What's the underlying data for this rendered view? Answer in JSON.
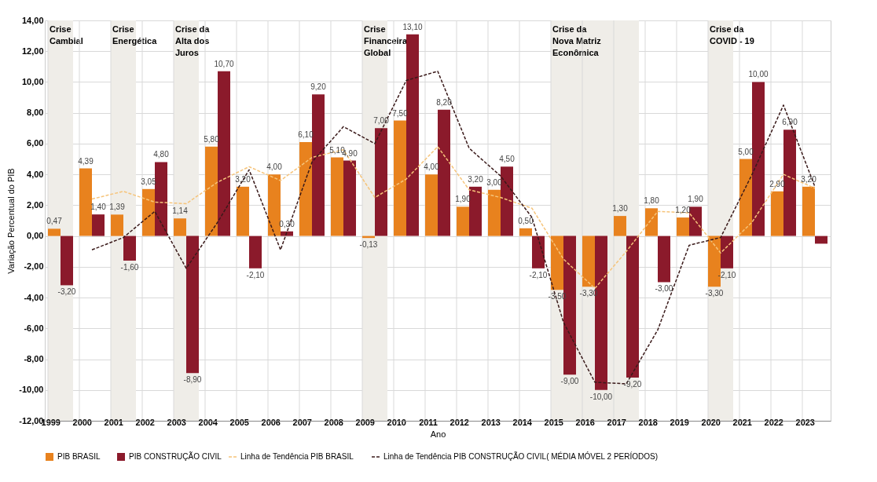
{
  "chart_data": {
    "type": "bar",
    "xlabel": "Ano",
    "ylabel": "Variação Percentual do PIB",
    "categories": [
      "1999",
      "2000",
      "2001",
      "2002",
      "2003",
      "2004",
      "2005",
      "2006",
      "2007",
      "2008",
      "2009",
      "2010",
      "2011",
      "2012",
      "2013",
      "2014",
      "2015",
      "2016",
      "2017",
      "2018",
      "2019",
      "2020",
      "2021",
      "2022",
      "2023"
    ],
    "series": [
      {
        "name": "PIB BRASIL",
        "color": "#e8821e",
        "values": [
          0.47,
          4.39,
          1.39,
          3.05,
          1.14,
          5.8,
          3.2,
          4.0,
          6.1,
          5.1,
          -0.13,
          7.5,
          4.0,
          1.9,
          3.0,
          0.5,
          -3.5,
          -3.3,
          1.3,
          1.8,
          1.2,
          -3.3,
          5.0,
          2.9,
          3.2
        ],
        "value_labels": [
          "0,47",
          "4,39",
          "1,39",
          "3,05",
          "1,14",
          "5,80",
          "3,20",
          "4,00",
          "6,10",
          "5,10",
          "-0,13",
          "7,50",
          "4,00",
          "1,90",
          "3,00",
          "0,50",
          "-3,50",
          "-3,30",
          "1,30",
          "1,80",
          "1,20",
          "-3,30",
          "5,00",
          "2,90",
          "3,20"
        ]
      },
      {
        "name": "PIB CONSTRUÇÃO CIVIL",
        "color": "#8b1a2b",
        "values": [
          -3.2,
          1.4,
          -1.6,
          4.8,
          -8.9,
          10.7,
          -2.1,
          0.3,
          9.2,
          4.9,
          7.0,
          13.1,
          8.2,
          3.2,
          4.5,
          -2.1,
          -9.0,
          -10.0,
          -9.2,
          -3.0,
          1.9,
          -2.1,
          10.0,
          6.9,
          -0.5
        ],
        "value_labels": [
          "-3,20",
          "1,40",
          "-1,60",
          "4,80",
          "-8,90",
          "10,70",
          "-2,10",
          "0,30",
          "9,20",
          "4,90",
          "7,00",
          "13,10",
          "8,20",
          "3,20",
          "4,50",
          "-2,10",
          "-9,00",
          "-10,00",
          "-9,20",
          "-3,00",
          "1,90",
          "-2,10",
          "10,00",
          "6,90",
          null
        ]
      },
      {
        "name": "Linha de Tendência PIB BRASIL",
        "type": "line",
        "line_style": "dashed",
        "color": "#f6c47a",
        "values": [
          null,
          2.4,
          2.9,
          2.2,
          2.1,
          3.5,
          4.5,
          3.6,
          5.1,
          5.6,
          2.5,
          3.7,
          5.8,
          3.0,
          2.5,
          1.8,
          -1.5,
          -3.4,
          -1.0,
          1.6,
          1.5,
          -1.1,
          0.9,
          4.0,
          3.1
        ]
      },
      {
        "name": "Linha de Tendência PIB CONSTRUÇÃO CIVIL( MÉDIA MÓVEL 2 PERÍODOS)",
        "type": "line",
        "line_style": "dashed",
        "color": "#3a1a1a",
        "values": [
          null,
          -0.9,
          -0.1,
          1.6,
          -2.1,
          0.9,
          4.3,
          -0.9,
          4.8,
          7.1,
          6.0,
          10.1,
          10.7,
          5.7,
          3.9,
          1.2,
          -5.6,
          -9.5,
          -9.6,
          -6.1,
          -0.6,
          -0.1,
          4.0,
          8.5,
          3.2
        ]
      }
    ],
    "ylim": [
      -12,
      14
    ],
    "yticks": [
      {
        "value": -12,
        "label": "-12,00"
      },
      {
        "value": -10,
        "label": "-10,00"
      },
      {
        "value": -8,
        "label": "-8,00"
      },
      {
        "value": -6,
        "label": "-6,00"
      },
      {
        "value": -4,
        "label": "-4,00"
      },
      {
        "value": -2,
        "label": "-2,00"
      },
      {
        "value": 0,
        "label": "0,00"
      },
      {
        "value": 2,
        "label": "2,00"
      },
      {
        "value": 4,
        "label": "4,00"
      },
      {
        "value": 6,
        "label": "6,00"
      },
      {
        "value": 8,
        "label": "8,00"
      },
      {
        "value": 10,
        "label": "10,00"
      },
      {
        "value": 12,
        "label": "12,00"
      },
      {
        "value": 14,
        "label": "14,00"
      }
    ],
    "bands": [
      {
        "axis": "x",
        "from": "1999",
        "to": "1999",
        "label": "Crise Cambial",
        "color": "#efede8"
      },
      {
        "axis": "x",
        "from": "2001",
        "to": "2001",
        "label": "Crise Energética",
        "color": "#efede8"
      },
      {
        "axis": "x",
        "from": "2003",
        "to": "2003",
        "label": "Crise da Alta dos Juros",
        "color": "#efede8"
      },
      {
        "axis": "x",
        "from": "2009",
        "to": "2009",
        "label": "Crise Financeira Global",
        "color": "#efede8"
      },
      {
        "axis": "x",
        "from": "2015",
        "to": "2017",
        "label": "Crise da Nova Matriz Econômica",
        "color": "#efede8"
      },
      {
        "axis": "x",
        "from": "2020",
        "to": "2020",
        "label": "Crise da COVID - 19",
        "color": "#efede8"
      }
    ],
    "grid": true,
    "legend": "bottom"
  }
}
